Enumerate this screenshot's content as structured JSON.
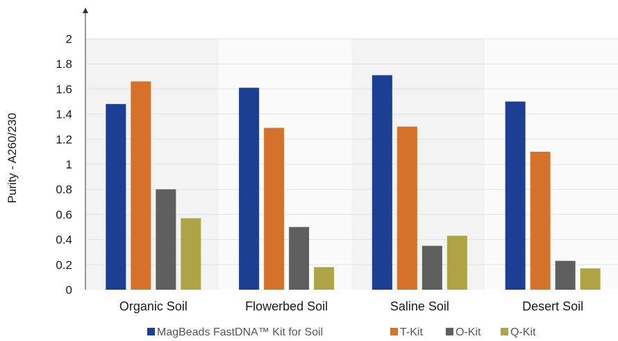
{
  "chart_data": {
    "type": "bar",
    "title": "",
    "xlabel": "",
    "ylabel": "Purity - A260/230",
    "ylim": [
      0,
      2
    ],
    "yticks": [
      "0",
      "0.2",
      "0.4",
      "0.6",
      "0.8",
      "1",
      "1.2",
      "1.4",
      "1.6",
      "1.8",
      "2"
    ],
    "categories": [
      "Organic Soil",
      "Flowerbed Soil",
      "Saline Soil",
      "Desert Soil"
    ],
    "series": [
      {
        "name": "MagBeads FastDNA™ Kit for Soil",
        "color": "#1c3f94",
        "values": [
          1.48,
          1.61,
          1.71,
          1.5
        ]
      },
      {
        "name": "T-Kit",
        "color": "#d4722a",
        "values": [
          1.66,
          1.29,
          1.3,
          1.1
        ]
      },
      {
        "name": "O-Kit",
        "color": "#5f5f5f",
        "values": [
          0.8,
          0.5,
          0.35,
          0.23
        ]
      },
      {
        "name": "Q-Kit",
        "color": "#aea444",
        "values": [
          0.57,
          0.18,
          0.43,
          0.17
        ]
      }
    ],
    "grid": true,
    "legend": "bottom",
    "band_colors": [
      "#f3f3f3",
      "#fbfbfb"
    ]
  }
}
